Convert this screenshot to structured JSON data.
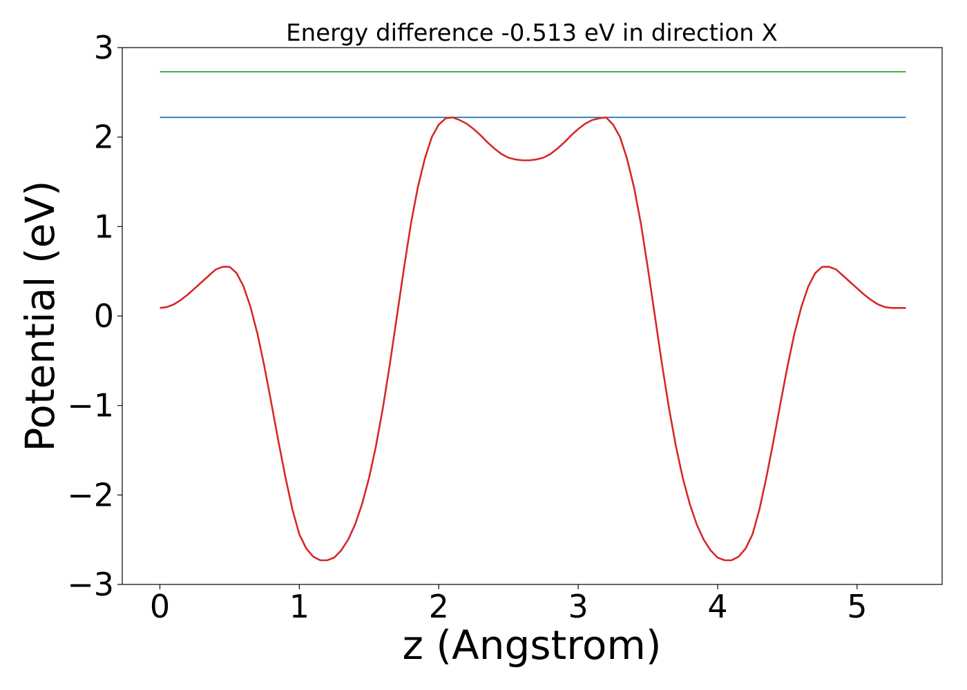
{
  "chart_data": {
    "type": "line",
    "title": "Energy difference -0.513 eV in direction X",
    "xlabel": "z (Angstrom)",
    "ylabel": "Potential (eV)",
    "xlim": [
      -0.27,
      5.61
    ],
    "ylim": [
      -3.0,
      3.0
    ],
    "xticks": [
      0,
      1,
      2,
      3,
      4,
      5
    ],
    "xtick_labels": [
      "0",
      "1",
      "2",
      "3",
      "4",
      "5"
    ],
    "yticks": [
      -3,
      -2,
      -1,
      0,
      1,
      2,
      3
    ],
    "ytick_labels": [
      "−3",
      "−2",
      "−1",
      "0",
      "1",
      "2",
      "3"
    ],
    "grid": false,
    "series": [
      {
        "color": "#d62728",
        "x": [
          0.0,
          0.05,
          0.1,
          0.15,
          0.2,
          0.25,
          0.3,
          0.35,
          0.4,
          0.45,
          0.5,
          0.55,
          0.6,
          0.65,
          0.7,
          0.75,
          0.8,
          0.85,
          0.9,
          0.95,
          1.0,
          1.05,
          1.1,
          1.15,
          1.2,
          1.25,
          1.3,
          1.35,
          1.4,
          1.45,
          1.5,
          1.55,
          1.6,
          1.65,
          1.7,
          1.75,
          1.8,
          1.85,
          1.9,
          1.95,
          2.0,
          2.05,
          2.1,
          2.15,
          2.2,
          2.25,
          2.3,
          2.35,
          2.4,
          2.45,
          2.5,
          2.55,
          2.6,
          2.65,
          2.7,
          2.75,
          2.8,
          2.85,
          2.9,
          2.95,
          3.0,
          3.05,
          3.1,
          3.15,
          3.2,
          3.25,
          3.3,
          3.35,
          3.4,
          3.45,
          3.5,
          3.55,
          3.6,
          3.65,
          3.7,
          3.75,
          3.8,
          3.85,
          3.9,
          3.95,
          4.0,
          4.05,
          4.1,
          4.15,
          4.2,
          4.25,
          4.3,
          4.35,
          4.4,
          4.45,
          4.5,
          4.55,
          4.6,
          4.65,
          4.7,
          4.75,
          4.8,
          4.85,
          4.9,
          4.95,
          5.0,
          5.05,
          5.1,
          5.15,
          5.2,
          5.25,
          5.3,
          5.35
        ],
        "y": [
          0.09,
          0.1,
          0.13,
          0.18,
          0.24,
          0.31,
          0.38,
          0.45,
          0.52,
          0.55,
          0.55,
          0.48,
          0.33,
          0.1,
          -0.2,
          -0.57,
          -0.98,
          -1.4,
          -1.8,
          -2.16,
          -2.44,
          -2.6,
          -2.69,
          -2.73,
          -2.73,
          -2.7,
          -2.62,
          -2.5,
          -2.33,
          -2.1,
          -1.81,
          -1.45,
          -1.02,
          -0.53,
          0.0,
          0.53,
          1.03,
          1.44,
          1.76,
          2.0,
          2.14,
          2.21,
          2.22,
          2.19,
          2.15,
          2.09,
          2.02,
          1.94,
          1.87,
          1.81,
          1.77,
          1.75,
          1.74,
          1.74,
          1.75,
          1.77,
          1.81,
          1.87,
          1.94,
          2.02,
          2.09,
          2.15,
          2.19,
          2.21,
          2.22,
          2.14,
          2.0,
          1.76,
          1.44,
          1.03,
          0.53,
          0.0,
          -0.53,
          -1.02,
          -1.45,
          -1.81,
          -2.1,
          -2.33,
          -2.5,
          -2.62,
          -2.7,
          -2.73,
          -2.73,
          -2.69,
          -2.6,
          -2.44,
          -2.16,
          -1.8,
          -1.4,
          -0.98,
          -0.57,
          -0.2,
          0.1,
          0.33,
          0.48,
          0.55,
          0.55,
          0.52,
          0.45,
          0.38,
          0.31,
          0.24,
          0.18,
          0.13,
          0.1,
          0.09,
          0.09,
          0.09
        ]
      },
      {
        "color": "#1f77b4",
        "x": [
          0.0,
          5.35
        ],
        "y": [
          2.22,
          2.22
        ]
      },
      {
        "color": "#2ca02c",
        "x": [
          0.0,
          5.35
        ],
        "y": [
          2.73,
          2.73
        ]
      }
    ]
  }
}
